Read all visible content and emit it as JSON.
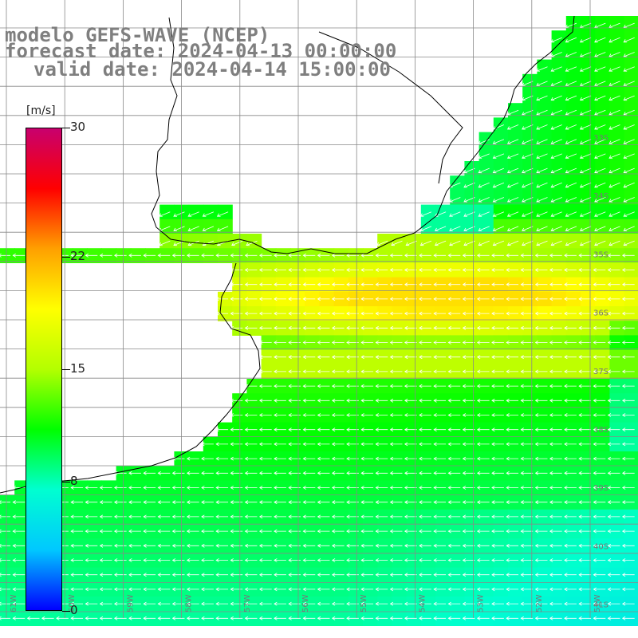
{
  "header": {
    "line1": "modelo GEFS-WAVE (NCEP)",
    "line2": "forecast date: 2024-04-13 00:00:00",
    "line3": "valid date: 2024-04-14 15:00:00"
  },
  "colorbar": {
    "unit": "[m/s]",
    "ticks": [
      "30",
      "22",
      "15",
      "8",
      "0"
    ],
    "range": [
      0,
      30
    ],
    "stops": [
      "#0000ff",
      "#00c8ff",
      "#00ffd0",
      "#00ff00",
      "#b4ff00",
      "#ffff00",
      "#ffa000",
      "#ff0000",
      "#c8006e"
    ]
  },
  "map": {
    "lat_labels": [
      "33S",
      "34S",
      "35S",
      "36S",
      "37S",
      "38S",
      "39S",
      "40S",
      "41S"
    ],
    "lon_labels": [
      "61W",
      "60W",
      "59W",
      "58W",
      "57W",
      "56W",
      "55W",
      "54W",
      "53W",
      "52W",
      "51W"
    ],
    "land_color": "#ffffff",
    "grid_color": "#888888"
  }
}
